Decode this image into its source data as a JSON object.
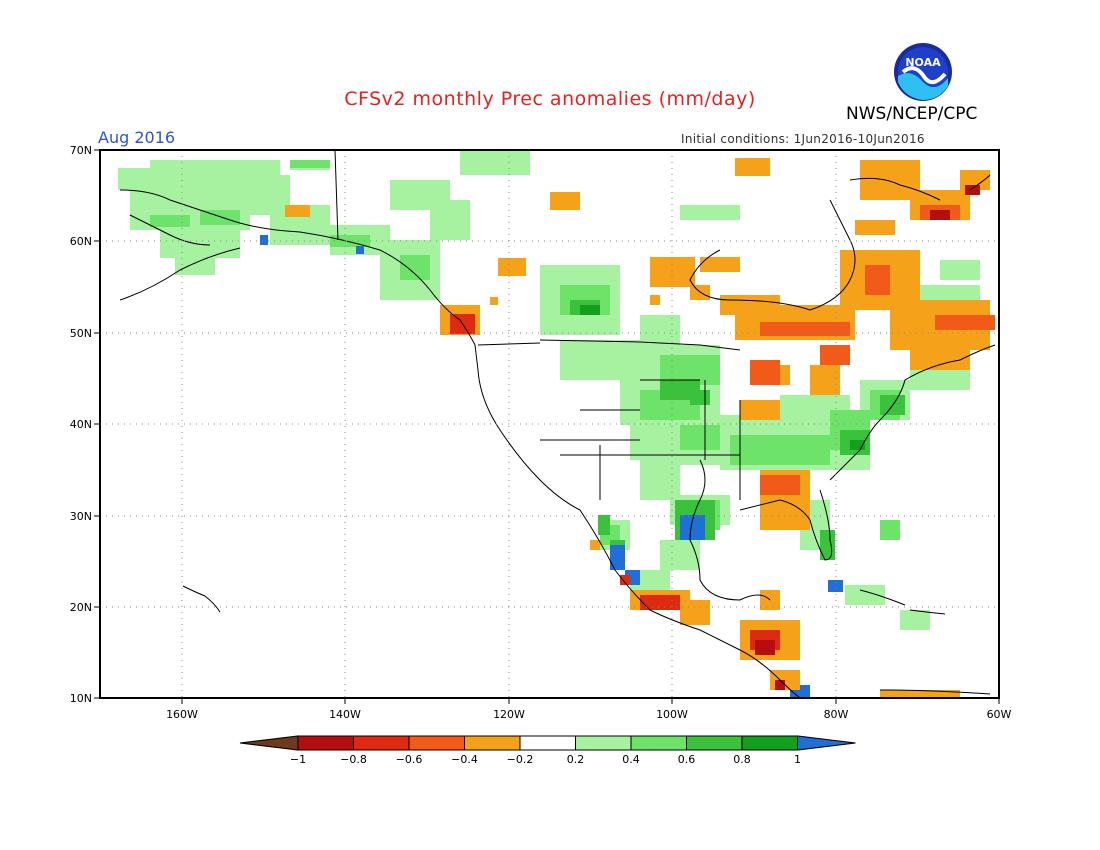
{
  "header": {
    "title": "CFSv2 monthly Prec anomalies (mm/day)",
    "agency": "NWS/NCEP/CPC",
    "logo_text": "NOAA",
    "valid_month": "Aug 2016",
    "initial_conditions": "Initial conditions: 1Jun2016-10Jun2016"
  },
  "map": {
    "lon_range": [
      -170,
      -60
    ],
    "lat_range": [
      10,
      70
    ],
    "lon_labels": [
      "160W",
      "140W",
      "120W",
      "100W",
      "80W",
      "60W"
    ],
    "lat_labels": [
      "70N",
      "60N",
      "50N",
      "40N",
      "30N",
      "20N",
      "10N"
    ],
    "grid": "dotted",
    "projection": "cylindrical equidistant"
  },
  "colorbar": {
    "tick_labels": [
      "-1",
      "-0.8",
      "-0.6",
      "-0.4",
      "-0.2",
      "0.2",
      "0.4",
      "0.6",
      "0.8",
      "1"
    ],
    "colors": [
      "#6b3a1f",
      "#b40e0e",
      "#dd2a10",
      "#f25a1a",
      "#f5a11a",
      "#ffffff",
      "#a7f2a0",
      "#6ee36a",
      "#3bc23c",
      "#149e1d",
      "#1f6fd6"
    ]
  },
  "anomaly_regions": [
    {
      "name": "Alaska / Yukon",
      "category": "0.2 to 0.4"
    },
    {
      "name": "Pacific Northwest coast",
      "category": "-0.6 to -0.4"
    },
    {
      "name": "Northern Plains",
      "category": "0.4 to 0.6"
    },
    {
      "name": "Eastern Canada",
      "category": "-0.4 to -0.2"
    },
    {
      "name": "Labrador",
      "category": "-0.8 to -0.6"
    },
    {
      "name": "Mid-Atlantic US",
      "category": "0.6 to 0.8"
    },
    {
      "name": "Texas Gulf Coast",
      "category": "> 1"
    },
    {
      "name": "Gulf Coast states",
      "category": "-0.4 to -0.2"
    },
    {
      "name": "Mexico Pacific coast",
      "category": "> 1"
    },
    {
      "name": "Central America",
      "category": "-0.8 to -0.6"
    }
  ]
}
